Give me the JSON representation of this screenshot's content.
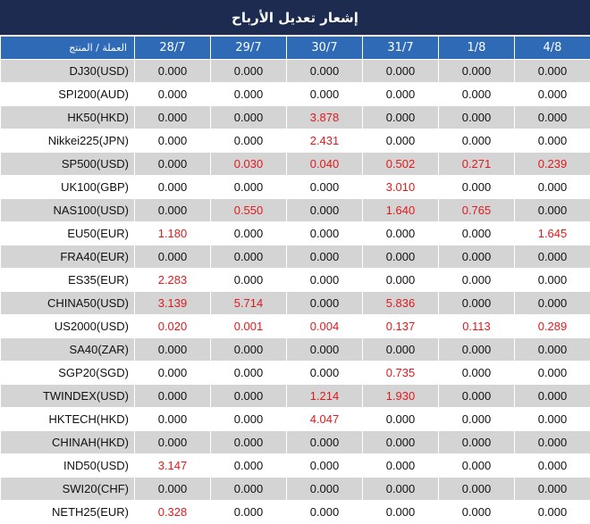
{
  "title": "إشعار تعديل الأرباح",
  "header": {
    "product": "العملة / المنتج",
    "dates": [
      "28/7",
      "29/7",
      "30/7",
      "31/7",
      "1/8",
      "4/8"
    ]
  },
  "colors": {
    "title_bg": "#1c2b4f",
    "header_bg": "#2f6ab7",
    "highlight": "#e3191c",
    "odd_row": "#d4d4d4"
  },
  "rows": [
    {
      "product": "DJ30(USD)",
      "values": [
        "0.000",
        "0.000",
        "0.000",
        "0.000",
        "0.000",
        "0.000"
      ]
    },
    {
      "product": "SPI200(AUD)",
      "values": [
        "0.000",
        "0.000",
        "0.000",
        "0.000",
        "0.000",
        "0.000"
      ]
    },
    {
      "product": "HK50(HKD)",
      "values": [
        "0.000",
        "0.000",
        "3.878",
        "0.000",
        "0.000",
        "0.000"
      ]
    },
    {
      "product": "Nikkei225(JPN)",
      "values": [
        "0.000",
        "0.000",
        "2.431",
        "0.000",
        "0.000",
        "0.000"
      ]
    },
    {
      "product": "SP500(USD)",
      "values": [
        "0.000",
        "0.030",
        "0.040",
        "0.502",
        "0.271",
        "0.239"
      ]
    },
    {
      "product": "UK100(GBP)",
      "values": [
        "0.000",
        "0.000",
        "0.000",
        "3.010",
        "0.000",
        "0.000"
      ]
    },
    {
      "product": "NAS100(USD)",
      "values": [
        "0.000",
        "0.550",
        "0.000",
        "1.640",
        "0.765",
        "0.000"
      ]
    },
    {
      "product": "EU50(EUR)",
      "values": [
        "1.180",
        "0.000",
        "0.000",
        "0.000",
        "0.000",
        "1.645"
      ]
    },
    {
      "product": "FRA40(EUR)",
      "values": [
        "0.000",
        "0.000",
        "0.000",
        "0.000",
        "0.000",
        "0.000"
      ]
    },
    {
      "product": "ES35(EUR)",
      "values": [
        "2.283",
        "0.000",
        "0.000",
        "0.000",
        "0.000",
        "0.000"
      ]
    },
    {
      "product": "CHINA50(USD)",
      "values": [
        "3.139",
        "5.714",
        "0.000",
        "5.836",
        "0.000",
        "0.000"
      ]
    },
    {
      "product": "US2000(USD)",
      "values": [
        "0.020",
        "0.001",
        "0.004",
        "0.137",
        "0.113",
        "0.289"
      ]
    },
    {
      "product": "SA40(ZAR)",
      "values": [
        "0.000",
        "0.000",
        "0.000",
        "0.000",
        "0.000",
        "0.000"
      ]
    },
    {
      "product": "SGP20(SGD)",
      "values": [
        "0.000",
        "0.000",
        "0.000",
        "0.735",
        "0.000",
        "0.000"
      ]
    },
    {
      "product": "TWINDEX(USD)",
      "values": [
        "0.000",
        "0.000",
        "1.214",
        "1.930",
        "0.000",
        "0.000"
      ]
    },
    {
      "product": "HKTECH(HKD)",
      "values": [
        "0.000",
        "0.000",
        "4.047",
        "0.000",
        "0.000",
        "0.000"
      ]
    },
    {
      "product": "CHINAH(HKD)",
      "values": [
        "0.000",
        "0.000",
        "0.000",
        "0.000",
        "0.000",
        "0.000"
      ]
    },
    {
      "product": "IND50(USD)",
      "values": [
        "3.147",
        "0.000",
        "0.000",
        "0.000",
        "0.000",
        "0.000"
      ]
    },
    {
      "product": "SWI20(CHF)",
      "values": [
        "0.000",
        "0.000",
        "0.000",
        "0.000",
        "0.000",
        "0.000"
      ]
    },
    {
      "product": "NETH25(EUR)",
      "values": [
        "0.328",
        "0.000",
        "0.000",
        "0.000",
        "0.000",
        "0.000"
      ]
    }
  ]
}
